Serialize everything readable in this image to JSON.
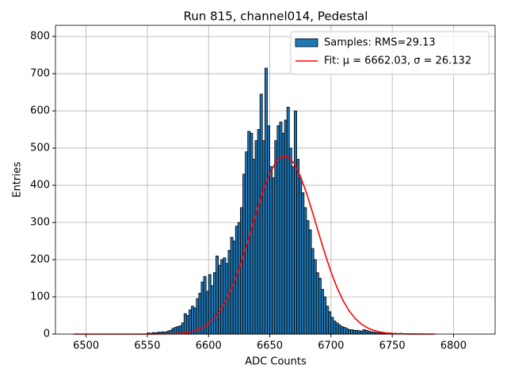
{
  "chart_data": {
    "type": "histogram",
    "title": "Run 815, channel014, Pedestal",
    "xlabel": "ADC Counts",
    "ylabel": "Entries",
    "bins": [
      6550,
      6552,
      6554,
      6556,
      6558,
      6560,
      6562,
      6564,
      6566,
      6568,
      6570,
      6572,
      6574,
      6576,
      6578,
      6580,
      6582,
      6584,
      6586,
      6588,
      6590,
      6592,
      6594,
      6596,
      6598,
      6600,
      6602,
      6604,
      6606,
      6608,
      6610,
      6612,
      6614,
      6616,
      6618,
      6620,
      6622,
      6624,
      6626,
      6628,
      6630,
      6632,
      6634,
      6636,
      6638,
      6640,
      6642,
      6644,
      6646,
      6648,
      6650,
      6652,
      6654,
      6656,
      6658,
      6660,
      6662,
      6664,
      6666,
      6668,
      6670,
      6672,
      6674,
      6676,
      6678,
      6680,
      6682,
      6684,
      6686,
      6688,
      6690,
      6692,
      6694,
      6696,
      6698,
      6700,
      6702,
      6704,
      6706,
      6708,
      6710,
      6712,
      6714,
      6716,
      6718,
      6720,
      6722,
      6724,
      6726,
      6728,
      6730,
      6732,
      6734,
      6736,
      6738,
      6740,
      6742,
      6744,
      6746,
      6748,
      6750,
      6752,
      6754,
      6756,
      6758,
      6760,
      6762,
      6764,
      6766,
      6768,
      6770
    ],
    "series": [
      {
        "name": "Samples: RMS=29.13",
        "type": "histogram",
        "color": "#1f77b4",
        "edgecolor": "#000000",
        "values": [
          3,
          2,
          4,
          3,
          5,
          5,
          6,
          5,
          8,
          10,
          15,
          18,
          20,
          22,
          30,
          55,
          50,
          65,
          75,
          70,
          95,
          110,
          140,
          155,
          115,
          160,
          130,
          165,
          210,
          185,
          200,
          205,
          190,
          225,
          260,
          250,
          290,
          300,
          340,
          430,
          490,
          545,
          540,
          470,
          520,
          550,
          645,
          520,
          715,
          560,
          450,
          420,
          520,
          560,
          570,
          540,
          575,
          610,
          500,
          450,
          600,
          470,
          420,
          380,
          340,
          305,
          280,
          230,
          200,
          165,
          150,
          120,
          100,
          75,
          60,
          45,
          35,
          30,
          25,
          20,
          18,
          15,
          12,
          12,
          10,
          10,
          9,
          8,
          12,
          10,
          8,
          6,
          5,
          4,
          3,
          3,
          2,
          2,
          3,
          2,
          2,
          1,
          1,
          2,
          1,
          1,
          1,
          0,
          1,
          1
        ]
      },
      {
        "name": "Fit: μ = 6662.03, σ = 26.132",
        "type": "line",
        "color": "#ff0000",
        "x": [
          6490,
          6495,
          6500,
          6505,
          6510,
          6515,
          6520,
          6525,
          6530,
          6535,
          6540,
          6545,
          6550,
          6555,
          6560,
          6565,
          6570,
          6575,
          6580,
          6585,
          6590,
          6595,
          6600,
          6605,
          6610,
          6615,
          6620,
          6625,
          6630,
          6635,
          6640,
          6645,
          6650,
          6655,
          6660,
          6665,
          6670,
          6675,
          6680,
          6685,
          6690,
          6695,
          6700,
          6705,
          6710,
          6715,
          6720,
          6725,
          6730,
          6735,
          6740,
          6745,
          6750,
          6755,
          6760,
          6765,
          6770,
          6775,
          6780,
          6785
        ],
        "values": [
          0,
          0,
          0,
          0,
          0,
          0,
          0,
          0,
          0,
          0,
          0,
          0,
          0.05,
          0.11,
          0.24,
          0.49,
          0.97,
          1.88,
          3.5,
          6.2,
          10.7,
          17.9,
          28.7,
          44.4,
          66.2,
          95.1,
          131.7,
          175.9,
          226.5,
          281.1,
          336.5,
          388.2,
          431.7,
          463.0,
          478.6,
          476.9,
          458.2,
          424.4,
          379.0,
          326.2,
          270.7,
          216.6,
          167.0,
          124.2,
          89.0,
          61.5,
          41.0,
          26.3,
          16.3,
          9.7,
          5.6,
          3.1,
          1.7,
          0.86,
          0.43,
          0.2,
          0.1,
          0.05,
          0,
          0
        ]
      }
    ],
    "xlim": [
      6475,
      6834
    ],
    "ylim": [
      0,
      830
    ],
    "xticks": [
      6500,
      6550,
      6600,
      6650,
      6700,
      6750,
      6800
    ],
    "yticks": [
      0,
      100,
      200,
      300,
      400,
      500,
      600,
      700,
      800
    ],
    "grid": true,
    "legend": "upper right"
  }
}
